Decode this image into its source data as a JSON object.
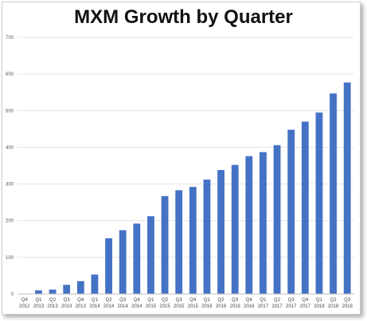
{
  "chart_data": {
    "type": "bar",
    "title": "MXM Growth by Quarter",
    "xlabel": "",
    "ylabel": "",
    "ylim": [
      0,
      700
    ],
    "yticks": [
      0,
      100,
      200,
      300,
      400,
      500,
      600,
      700
    ],
    "grid": true,
    "legend": "none",
    "bar_color": "#4472c4",
    "categories": [
      {
        "q": "Q4",
        "y": "2012"
      },
      {
        "q": "Q1",
        "y": "2013"
      },
      {
        "q": "Q2",
        "y": "2013"
      },
      {
        "q": "Q3",
        "y": "2013"
      },
      {
        "q": "Q4",
        "y": "2013"
      },
      {
        "q": "Q1",
        "y": "2014"
      },
      {
        "q": "Q2",
        "y": "2014"
      },
      {
        "q": "Q3",
        "y": "2014"
      },
      {
        "q": "Q4",
        "y": "2014"
      },
      {
        "q": "Q1",
        "y": "2015"
      },
      {
        "q": "Q2",
        "y": "2015"
      },
      {
        "q": "Q3",
        "y": "2015"
      },
      {
        "q": "Q4",
        "y": "2015"
      },
      {
        "q": "Q1",
        "y": "2016"
      },
      {
        "q": "Q2",
        "y": "2016"
      },
      {
        "q": "Q3",
        "y": "2016"
      },
      {
        "q": "Q4",
        "y": "2016"
      },
      {
        "q": "Q1",
        "y": "2017"
      },
      {
        "q": "Q2",
        "y": "2017"
      },
      {
        "q": "Q3",
        "y": "2017"
      },
      {
        "q": "Q4",
        "y": "2017"
      },
      {
        "q": "Q1",
        "y": "2018"
      },
      {
        "q": "Q2",
        "y": "2018"
      },
      {
        "q": "Q3",
        "y": "2018"
      }
    ],
    "values": [
      0,
      10,
      12,
      25,
      35,
      53,
      152,
      174,
      192,
      212,
      267,
      283,
      292,
      312,
      338,
      352,
      376,
      387,
      406,
      448,
      470,
      495,
      547,
      577
    ]
  }
}
